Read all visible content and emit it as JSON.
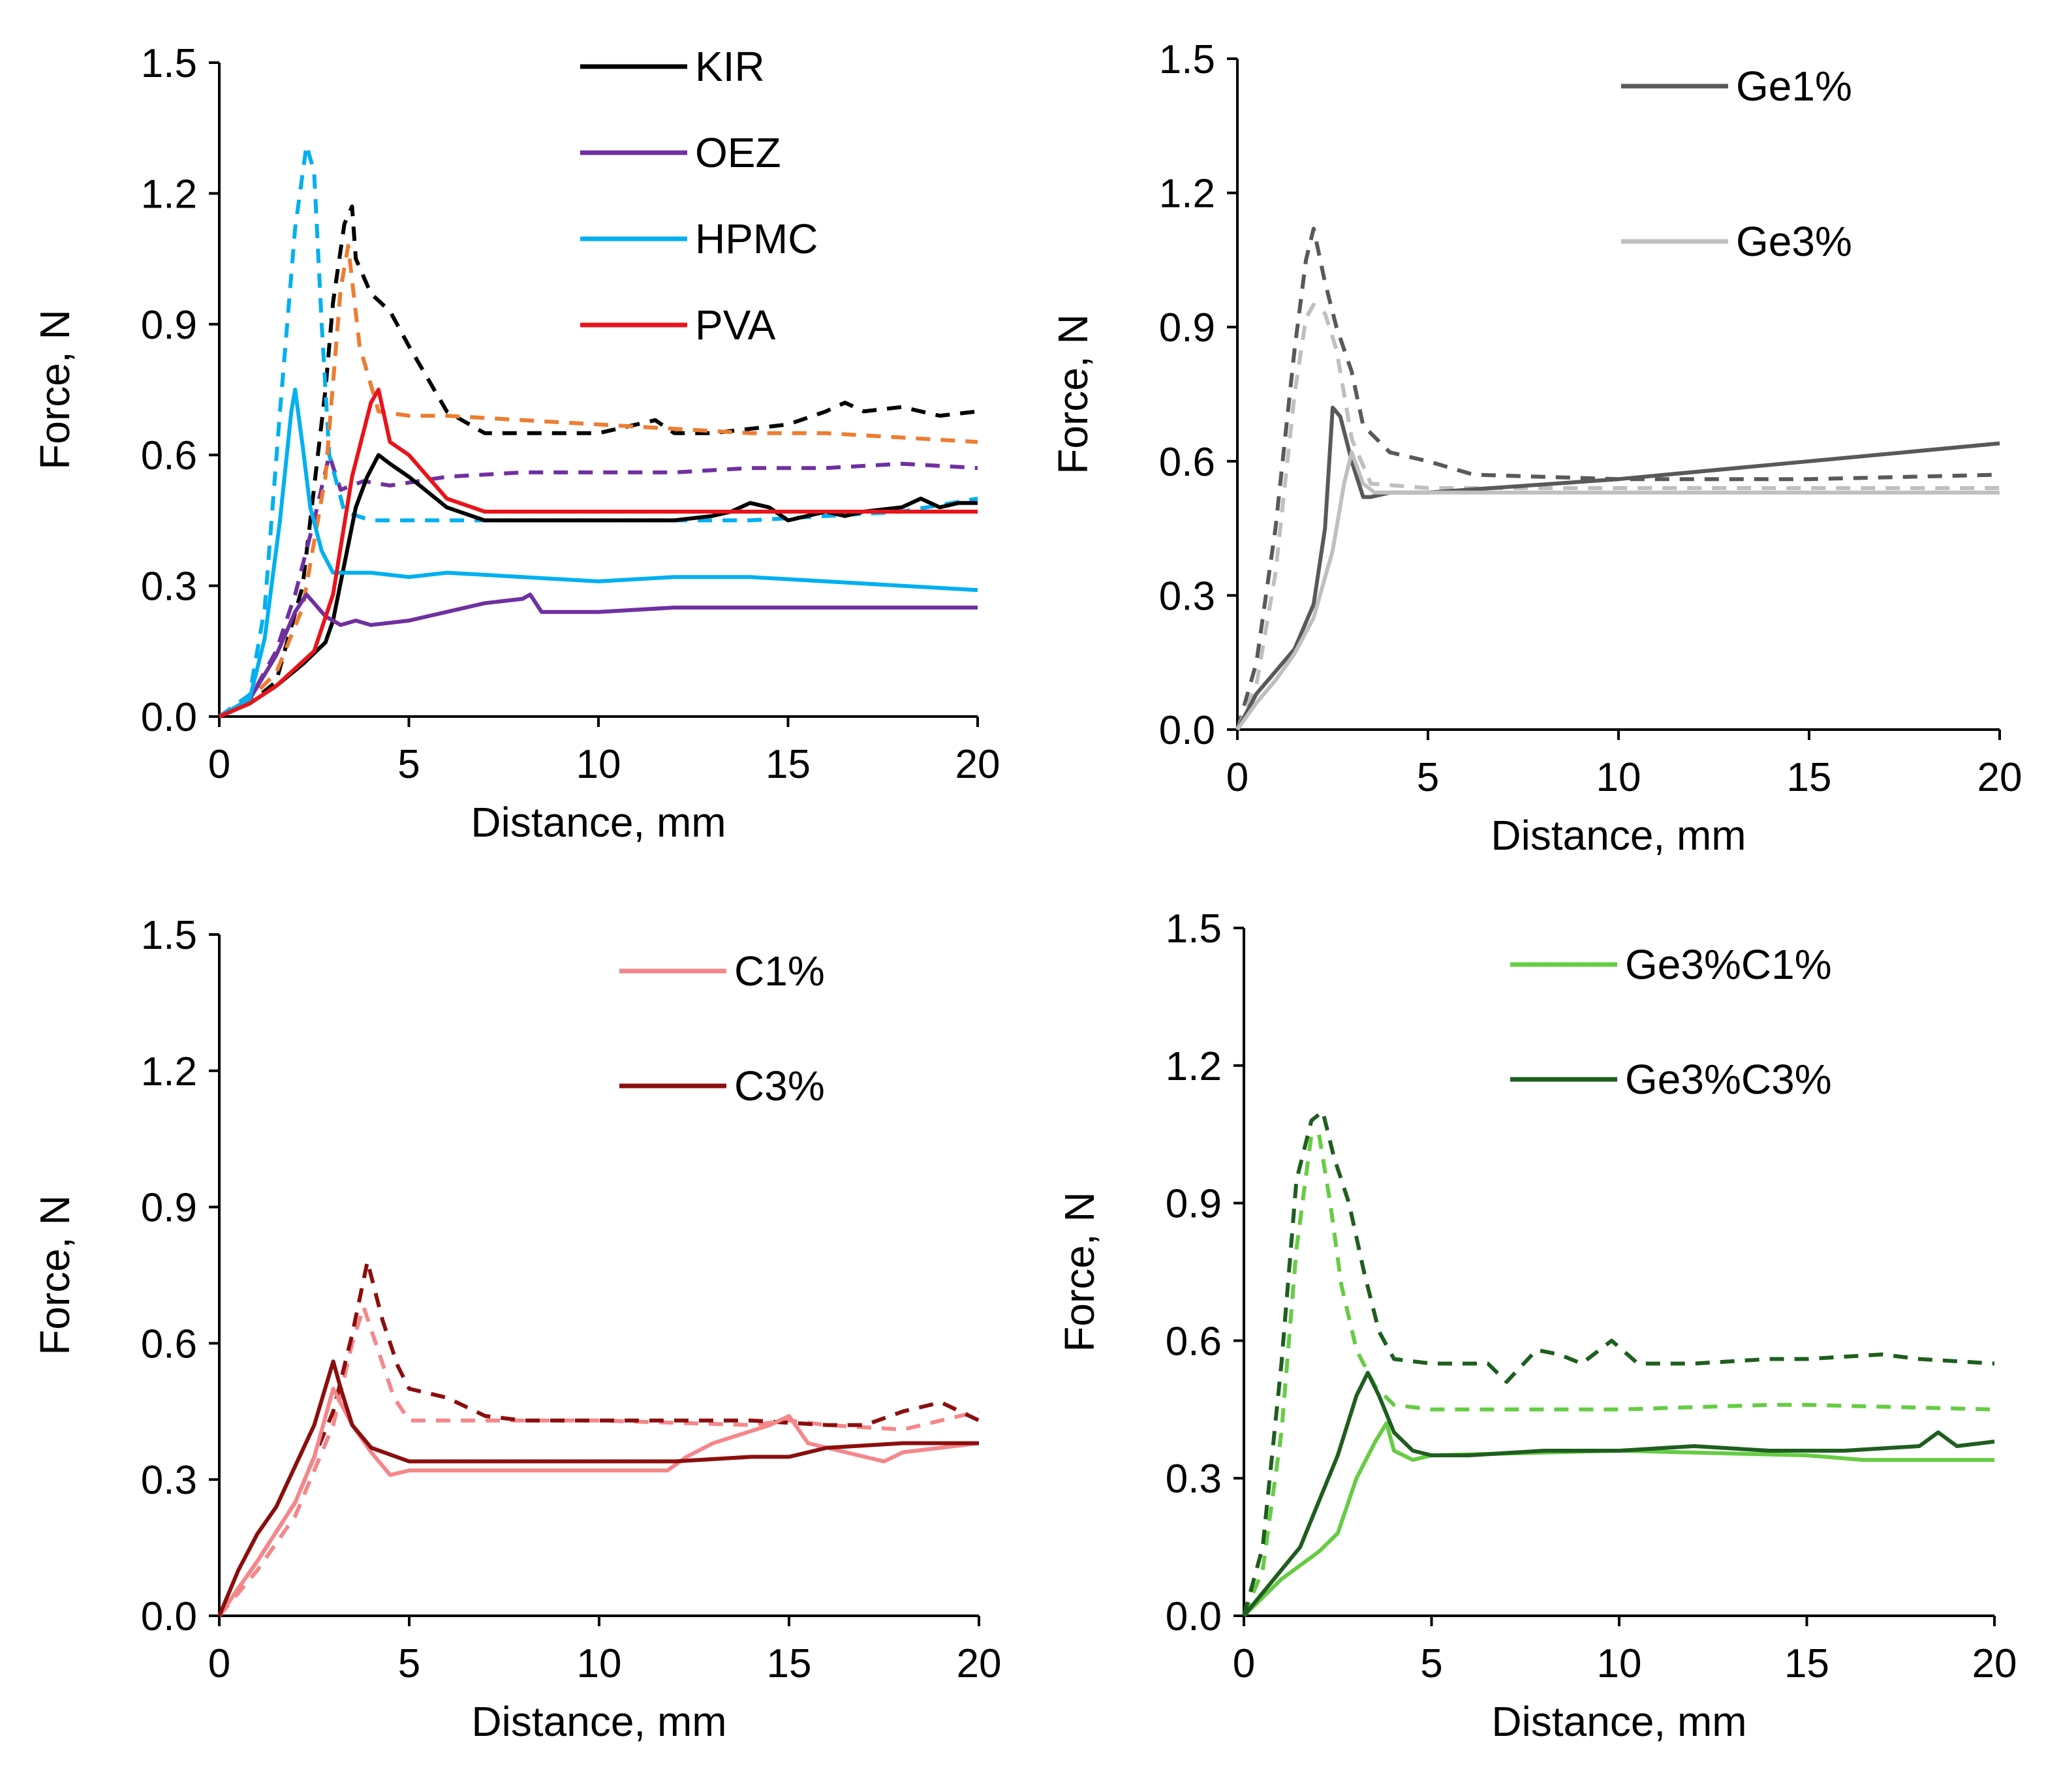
{
  "chart_data": [
    {
      "type": "line",
      "xlabel": "Distance, mm",
      "ylabel": "Force, N",
      "xlim": [
        0,
        20
      ],
      "ylim": [
        0,
        1.5
      ],
      "xticks": [
        "0",
        "5",
        "10",
        "15",
        "20"
      ],
      "yticks": [
        "0.0",
        "0.3",
        "0.6",
        "0.9",
        "1.2",
        "1.5"
      ],
      "legend": [
        "KIR",
        "OEZ",
        "HPMC",
        "PVA"
      ],
      "series": [
        {
          "name": "KIR",
          "color": "#000000",
          "dash": false,
          "legend": true,
          "x": [
            0,
            0.8,
            1.5,
            2.2,
            2.8,
            3.0,
            3.3,
            3.6,
            3.9,
            4.2,
            4.5,
            5.0,
            6.0,
            7.0,
            8.0,
            9.0,
            10,
            11,
            12,
            13,
            13.5,
            14,
            14.5,
            15,
            15.5,
            16,
            16.5,
            17,
            18,
            18.5,
            19,
            19.5,
            20
          ],
          "y": [
            0,
            0.03,
            0.07,
            0.12,
            0.17,
            0.22,
            0.35,
            0.48,
            0.55,
            0.6,
            0.58,
            0.55,
            0.48,
            0.45,
            0.45,
            0.45,
            0.45,
            0.45,
            0.45,
            0.46,
            0.47,
            0.49,
            0.48,
            0.45,
            0.46,
            0.47,
            0.46,
            0.47,
            0.48,
            0.5,
            0.48,
            0.49,
            0.49
          ]
        },
        {
          "name": "OEZ",
          "color": "#7030A0",
          "dash": false,
          "legend": true,
          "x": [
            0,
            0.8,
            1.5,
            2.0,
            2.3,
            2.5,
            2.8,
            3.2,
            3.6,
            4,
            5,
            6,
            7,
            8,
            8.2,
            8.5,
            10,
            12,
            14,
            16,
            18,
            20
          ],
          "y": [
            0,
            0.04,
            0.14,
            0.24,
            0.28,
            0.26,
            0.23,
            0.21,
            0.22,
            0.21,
            0.22,
            0.24,
            0.26,
            0.27,
            0.28,
            0.24,
            0.24,
            0.25,
            0.25,
            0.25,
            0.25,
            0.25
          ]
        },
        {
          "name": "HPMC",
          "color": "#00B0F0",
          "dash": false,
          "legend": true,
          "x": [
            0,
            0.8,
            1.2,
            1.6,
            1.9,
            2.0,
            2.2,
            2.4,
            2.7,
            3.0,
            3.2,
            4,
            5,
            6,
            8,
            10,
            12,
            13,
            14,
            16,
            18,
            20
          ],
          "y": [
            0,
            0.04,
            0.18,
            0.45,
            0.7,
            0.75,
            0.62,
            0.48,
            0.38,
            0.33,
            0.33,
            0.33,
            0.32,
            0.33,
            0.32,
            0.31,
            0.32,
            0.32,
            0.32,
            0.31,
            0.3,
            0.29
          ]
        },
        {
          "name": "PVA",
          "color": "#E8141B",
          "dash": false,
          "legend": true,
          "x": [
            0,
            0.8,
            1.5,
            2.5,
            3.0,
            3.5,
            4.0,
            4.2,
            4.5,
            5.0,
            6.0,
            7.0,
            8,
            10,
            12,
            14,
            16,
            18,
            20
          ],
          "y": [
            0,
            0.03,
            0.07,
            0.15,
            0.28,
            0.55,
            0.72,
            0.75,
            0.63,
            0.6,
            0.5,
            0.47,
            0.47,
            0.47,
            0.47,
            0.47,
            0.47,
            0.47,
            0.47
          ]
        },
        {
          "name": "KIR dashed",
          "color": "#000000",
          "dash": true,
          "legend": false,
          "x": [
            0,
            0.8,
            1.5,
            2.2,
            2.8,
            3.0,
            3.3,
            3.5,
            3.6,
            4.0,
            4.5,
            5.0,
            6.0,
            7.0,
            8,
            10,
            11.5,
            12,
            13,
            14,
            15,
            16,
            16.5,
            17,
            18,
            19,
            20
          ],
          "y": [
            0,
            0.03,
            0.08,
            0.3,
            0.75,
            0.95,
            1.13,
            1.17,
            1.05,
            0.97,
            0.93,
            0.85,
            0.7,
            0.65,
            0.65,
            0.65,
            0.68,
            0.65,
            0.65,
            0.66,
            0.67,
            0.7,
            0.72,
            0.7,
            0.71,
            0.69,
            0.7
          ]
        },
        {
          "name": "OEZ dashed",
          "color": "#7030A0",
          "dash": true,
          "legend": false,
          "x": [
            0,
            0.8,
            1.5,
            2.0,
            2.5,
            2.9,
            3.2,
            3.5,
            3.8,
            4.5,
            6,
            8,
            10,
            12,
            14,
            16,
            18,
            20
          ],
          "y": [
            0,
            0.04,
            0.15,
            0.28,
            0.45,
            0.6,
            0.52,
            0.53,
            0.54,
            0.53,
            0.55,
            0.56,
            0.56,
            0.56,
            0.57,
            0.57,
            0.58,
            0.57
          ]
        },
        {
          "name": "HPMC dashed",
          "color": "#00B0F0",
          "dash": true,
          "legend": false,
          "x": [
            0,
            0.8,
            1.2,
            1.6,
            2.0,
            2.3,
            2.5,
            2.7,
            2.9,
            3.3,
            4,
            6,
            8,
            10,
            12,
            14,
            16,
            18,
            20
          ],
          "y": [
            0,
            0.05,
            0.25,
            0.7,
            1.12,
            1.31,
            1.25,
            0.9,
            0.6,
            0.47,
            0.45,
            0.45,
            0.45,
            0.45,
            0.45,
            0.45,
            0.46,
            0.47,
            0.5
          ]
        },
        {
          "name": "PVA dashed",
          "color": "#ED7D31",
          "dash": true,
          "legend": false,
          "x": [
            0,
            0.8,
            1.5,
            2.2,
            2.8,
            3.2,
            3.4,
            3.7,
            4.2,
            5,
            6,
            8,
            10,
            12,
            14,
            16,
            18,
            20
          ],
          "y": [
            0,
            0.04,
            0.1,
            0.25,
            0.55,
            0.98,
            1.08,
            0.85,
            0.7,
            0.69,
            0.69,
            0.68,
            0.67,
            0.66,
            0.65,
            0.65,
            0.64,
            0.63
          ]
        }
      ]
    },
    {
      "type": "line",
      "xlabel": "Distance, mm",
      "ylabel": "Force, N",
      "xlim": [
        0,
        20
      ],
      "ylim": [
        0,
        1.5
      ],
      "xticks": [
        "0",
        "5",
        "10",
        "15",
        "20"
      ],
      "yticks": [
        "0.0",
        "0.3",
        "0.6",
        "0.9",
        "1.2",
        "1.5"
      ],
      "legend": [
        "Ge1%",
        "Ge3%"
      ],
      "series": [
        {
          "name": "Ge1%",
          "color": "#595959",
          "dash": false,
          "legend": true,
          "x": [
            0,
            0.5,
            1.0,
            1.5,
            2.0,
            2.3,
            2.5,
            2.7,
            3.0,
            3.3,
            3.5,
            4.0,
            5,
            10,
            15,
            20
          ],
          "y": [
            0,
            0.08,
            0.13,
            0.18,
            0.28,
            0.45,
            0.72,
            0.7,
            0.6,
            0.52,
            0.52,
            0.53,
            0.53,
            0.56,
            0.6,
            0.64
          ]
        },
        {
          "name": "Ge3%",
          "color": "#BFBFBF",
          "dash": false,
          "legend": true,
          "x": [
            0,
            0.5,
            1.0,
            1.5,
            2.0,
            2.5,
            2.8,
            3.0,
            3.3,
            3.6,
            4,
            5,
            10,
            15,
            20
          ],
          "y": [
            0,
            0.06,
            0.11,
            0.17,
            0.25,
            0.4,
            0.55,
            0.62,
            0.55,
            0.53,
            0.53,
            0.53,
            0.53,
            0.53,
            0.53
          ]
        },
        {
          "name": "Ge1% dashed",
          "color": "#595959",
          "dash": true,
          "legend": false,
          "x": [
            0,
            0.5,
            1.0,
            1.5,
            1.8,
            2.0,
            2.3,
            2.6,
            3.0,
            3.3,
            4,
            5,
            6.2,
            10,
            15,
            20
          ],
          "y": [
            0,
            0.15,
            0.45,
            0.85,
            1.05,
            1.12,
            1.0,
            0.9,
            0.8,
            0.68,
            0.62,
            0.6,
            0.57,
            0.56,
            0.56,
            0.57
          ]
        },
        {
          "name": "Ge3% dashed",
          "color": "#BFBFBF",
          "dash": true,
          "legend": false,
          "x": [
            0,
            0.5,
            1.0,
            1.5,
            1.8,
            2.0,
            2.3,
            2.6,
            3.0,
            3.5,
            5,
            10,
            15,
            20
          ],
          "y": [
            0,
            0.1,
            0.35,
            0.75,
            0.92,
            0.95,
            0.93,
            0.85,
            0.65,
            0.55,
            0.54,
            0.54,
            0.54,
            0.54
          ]
        }
      ]
    },
    {
      "type": "line",
      "xlabel": "Distance, mm",
      "ylabel": "Force, N",
      "xlim": [
        0,
        20
      ],
      "ylim": [
        0,
        1.5
      ],
      "xticks": [
        "0",
        "5",
        "10",
        "15",
        "20"
      ],
      "yticks": [
        "0.0",
        "0.3",
        "0.6",
        "0.9",
        "1.2",
        "1.5"
      ],
      "legend": [
        "C1%",
        "C3%"
      ],
      "series": [
        {
          "name": "C1%",
          "color": "#F4878A",
          "dash": false,
          "legend": true,
          "x": [
            0,
            1,
            2,
            2.5,
            3.0,
            3.5,
            4.0,
            4.5,
            5,
            7,
            10,
            11.8,
            12.3,
            13,
            14.5,
            15,
            15.5,
            16,
            17.5,
            18,
            20
          ],
          "y": [
            0,
            0.12,
            0.25,
            0.35,
            0.5,
            0.42,
            0.36,
            0.31,
            0.32,
            0.32,
            0.32,
            0.32,
            0.35,
            0.38,
            0.42,
            0.44,
            0.38,
            0.37,
            0.34,
            0.36,
            0.38
          ]
        },
        {
          "name": "C3%",
          "color": "#8B0E0E",
          "dash": false,
          "legend": true,
          "x": [
            0,
            0.5,
            1.0,
            1.5,
            2.0,
            2.5,
            3.0,
            3.2,
            3.5,
            4.0,
            5,
            7,
            10,
            12,
            14,
            15,
            16,
            18,
            20
          ],
          "y": [
            0,
            0.1,
            0.18,
            0.24,
            0.33,
            0.42,
            0.56,
            0.5,
            0.42,
            0.37,
            0.34,
            0.34,
            0.34,
            0.34,
            0.35,
            0.35,
            0.37,
            0.38,
            0.38
          ]
        },
        {
          "name": "C1% dashed",
          "color": "#F4878A",
          "dash": true,
          "legend": false,
          "x": [
            0,
            1,
            2,
            3,
            3.5,
            3.8,
            4.2,
            4.6,
            5,
            6,
            8,
            10,
            14,
            15,
            16,
            18,
            19,
            20
          ],
          "y": [
            0,
            0.1,
            0.22,
            0.42,
            0.6,
            0.68,
            0.58,
            0.48,
            0.43,
            0.43,
            0.43,
            0.43,
            0.42,
            0.43,
            0.42,
            0.41,
            0.43,
            0.45
          ]
        },
        {
          "name": "C3% dashed",
          "color": "#8B0E0E",
          "dash": true,
          "legend": false,
          "x": [
            0,
            1,
            2,
            3,
            3.5,
            3.9,
            4.3,
            4.7,
            5,
            6,
            7,
            8,
            10,
            12,
            14,
            16,
            17,
            18,
            19,
            20
          ],
          "y": [
            0,
            0.12,
            0.25,
            0.45,
            0.62,
            0.78,
            0.65,
            0.55,
            0.5,
            0.48,
            0.44,
            0.43,
            0.43,
            0.43,
            0.43,
            0.42,
            0.42,
            0.45,
            0.47,
            0.43
          ]
        }
      ]
    },
    {
      "type": "line",
      "xlabel": "Distance, mm",
      "ylabel": "Force, N",
      "xlim": [
        0,
        20
      ],
      "ylim": [
        0,
        1.5
      ],
      "xticks": [
        "0",
        "5",
        "10",
        "15",
        "20"
      ],
      "yticks": [
        "0.0",
        "0.3",
        "0.6",
        "0.9",
        "1.2",
        "1.5"
      ],
      "legend": [
        "Ge3%C1%",
        "Ge3%C3%"
      ],
      "series": [
        {
          "name": "Ge3%C1%",
          "color": "#66CC44",
          "dash": false,
          "legend": true,
          "x": [
            0,
            1,
            2,
            2.5,
            3.0,
            3.5,
            3.8,
            4.0,
            4.5,
            5,
            10,
            15,
            16.5,
            17,
            20
          ],
          "y": [
            0,
            0.08,
            0.14,
            0.18,
            0.3,
            0.38,
            0.42,
            0.36,
            0.34,
            0.35,
            0.36,
            0.35,
            0.34,
            0.34,
            0.34
          ]
        },
        {
          "name": "Ge3%C3%",
          "color": "#1E5E1E",
          "dash": false,
          "legend": true,
          "x": [
            0,
            1,
            1.5,
            2,
            2.5,
            3.0,
            3.3,
            3.6,
            4.0,
            4.5,
            5,
            6,
            8,
            10,
            12,
            14,
            16,
            18,
            18.5,
            19,
            20
          ],
          "y": [
            0,
            0.1,
            0.15,
            0.25,
            0.35,
            0.48,
            0.53,
            0.48,
            0.4,
            0.36,
            0.35,
            0.35,
            0.36,
            0.36,
            0.37,
            0.36,
            0.36,
            0.37,
            0.4,
            0.37,
            0.38
          ]
        },
        {
          "name": "Ge3%C1% dashed",
          "color": "#66CC44",
          "dash": true,
          "legend": false,
          "x": [
            0,
            0.5,
            1.0,
            1.4,
            1.8,
            2.0,
            2.3,
            2.6,
            3.0,
            3.5,
            4,
            5,
            10,
            14,
            15,
            20
          ],
          "y": [
            0,
            0.1,
            0.4,
            0.8,
            1.05,
            1.05,
            0.9,
            0.72,
            0.58,
            0.5,
            0.46,
            0.45,
            0.45,
            0.46,
            0.46,
            0.45
          ]
        },
        {
          "name": "Ge3%C3% dashed",
          "color": "#1E5E1E",
          "dash": true,
          "legend": false,
          "x": [
            0,
            0.5,
            1.0,
            1.4,
            1.8,
            2.1,
            2.4,
            2.8,
            3.2,
            3.6,
            4.0,
            5,
            6.5,
            7,
            7.8,
            8.4,
            9,
            9.8,
            10.5,
            12,
            14,
            15,
            17,
            18,
            20
          ],
          "y": [
            0,
            0.15,
            0.55,
            0.95,
            1.08,
            1.1,
            1.0,
            0.9,
            0.75,
            0.62,
            0.56,
            0.55,
            0.55,
            0.51,
            0.58,
            0.57,
            0.55,
            0.6,
            0.55,
            0.55,
            0.56,
            0.56,
            0.57,
            0.56,
            0.55
          ]
        }
      ]
    }
  ]
}
